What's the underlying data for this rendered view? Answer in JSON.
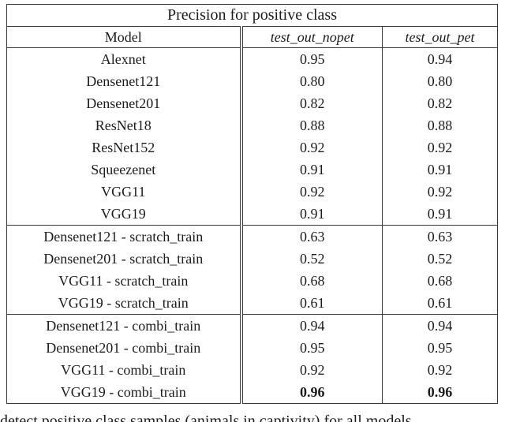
{
  "colors": {
    "background": "#ffffff",
    "text": "#1c1c1c",
    "border": "#3a3a3a"
  },
  "table": {
    "title": "Precision for positive class",
    "columns": {
      "model": "Model",
      "nopet": "test_out_nopet",
      "pet": "test_out_pet"
    },
    "rows": [
      {
        "model": "Alexnet",
        "nopet": "0.95",
        "pet": "0.94"
      },
      {
        "model": "Densenet121",
        "nopet": "0.80",
        "pet": "0.80"
      },
      {
        "model": "Densenet201",
        "nopet": "0.82",
        "pet": "0.82"
      },
      {
        "model": "ResNet18",
        "nopet": "0.88",
        "pet": "0.88"
      },
      {
        "model": "ResNet152",
        "nopet": "0.92",
        "pet": "0.92"
      },
      {
        "model": "Squeezenet",
        "nopet": "0.91",
        "pet": "0.91"
      },
      {
        "model": "VGG11",
        "nopet": "0.92",
        "pet": "0.92"
      },
      {
        "model": "VGG19",
        "nopet": "0.91",
        "pet": "0.91"
      },
      {
        "model": "Densenet121 - scratch_train",
        "nopet": "0.63",
        "pet": "0.63"
      },
      {
        "model": "Densenet201 - scratch_train",
        "nopet": "0.52",
        "pet": "0.52"
      },
      {
        "model": "VGG11 - scratch_train",
        "nopet": "0.68",
        "pet": "0.68"
      },
      {
        "model": "VGG19 - scratch_train",
        "nopet": "0.61",
        "pet": "0.61"
      },
      {
        "model": "Densenet121 - combi_train",
        "nopet": "0.94",
        "pet": "0.94"
      },
      {
        "model": "Densenet201 - combi_train",
        "nopet": "0.95",
        "pet": "0.95"
      },
      {
        "model": "VGG11 - combi_train",
        "nopet": "0.92",
        "pet": "0.92"
      },
      {
        "model": "VGG19 - combi_train",
        "nopet": "0.96",
        "pet": "0.96"
      }
    ]
  },
  "caption": {
    "text": "detect positive class samples (animals in captivity) for all models"
  }
}
